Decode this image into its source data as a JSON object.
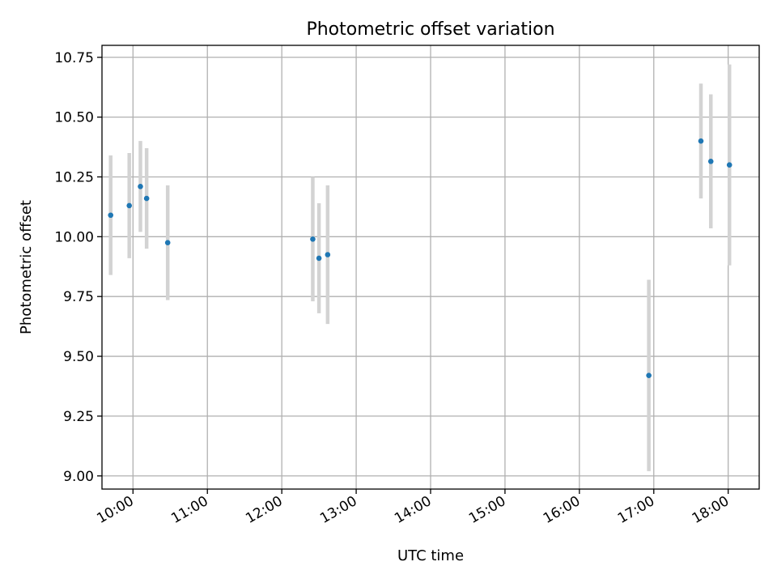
{
  "chart_data": {
    "type": "scatter",
    "title": "Photometric offset variation",
    "xlabel": "UTC time",
    "ylabel": "Photometric offset",
    "grid": true,
    "x_tick_labels": [
      "10:00",
      "11:00",
      "12:00",
      "13:00",
      "14:00",
      "15:00",
      "16:00",
      "17:00",
      "18:00"
    ],
    "y_tick_labels": [
      "9.00",
      "9.25",
      "9.50",
      "9.75",
      "10.00",
      "10.25",
      "10.50",
      "10.75"
    ],
    "xlim": [
      "09:35",
      "18:25"
    ],
    "ylim": [
      8.945,
      10.8
    ],
    "series": [
      {
        "color": "#1f77b4",
        "errorbar_color": "#d3d3d3",
        "points": [
          {
            "x": "09:42",
            "y": 10.09,
            "err": 0.25
          },
          {
            "x": "09:57",
            "y": 10.13,
            "err": 0.22
          },
          {
            "x": "10:06",
            "y": 10.21,
            "err": 0.19
          },
          {
            "x": "10:11",
            "y": 10.16,
            "err": 0.21
          },
          {
            "x": "10:28",
            "y": 9.975,
            "err": 0.24
          },
          {
            "x": "12:25",
            "y": 9.99,
            "err": 0.26
          },
          {
            "x": "12:30",
            "y": 9.91,
            "err": 0.23
          },
          {
            "x": "12:37",
            "y": 9.925,
            "err": 0.29
          },
          {
            "x": "16:56",
            "y": 9.42,
            "err": 0.4
          },
          {
            "x": "17:38",
            "y": 10.4,
            "err": 0.24
          },
          {
            "x": "17:46",
            "y": 10.315,
            "err": 0.28
          },
          {
            "x": "18:01",
            "y": 10.3,
            "err": 0.42
          }
        ]
      }
    ]
  }
}
